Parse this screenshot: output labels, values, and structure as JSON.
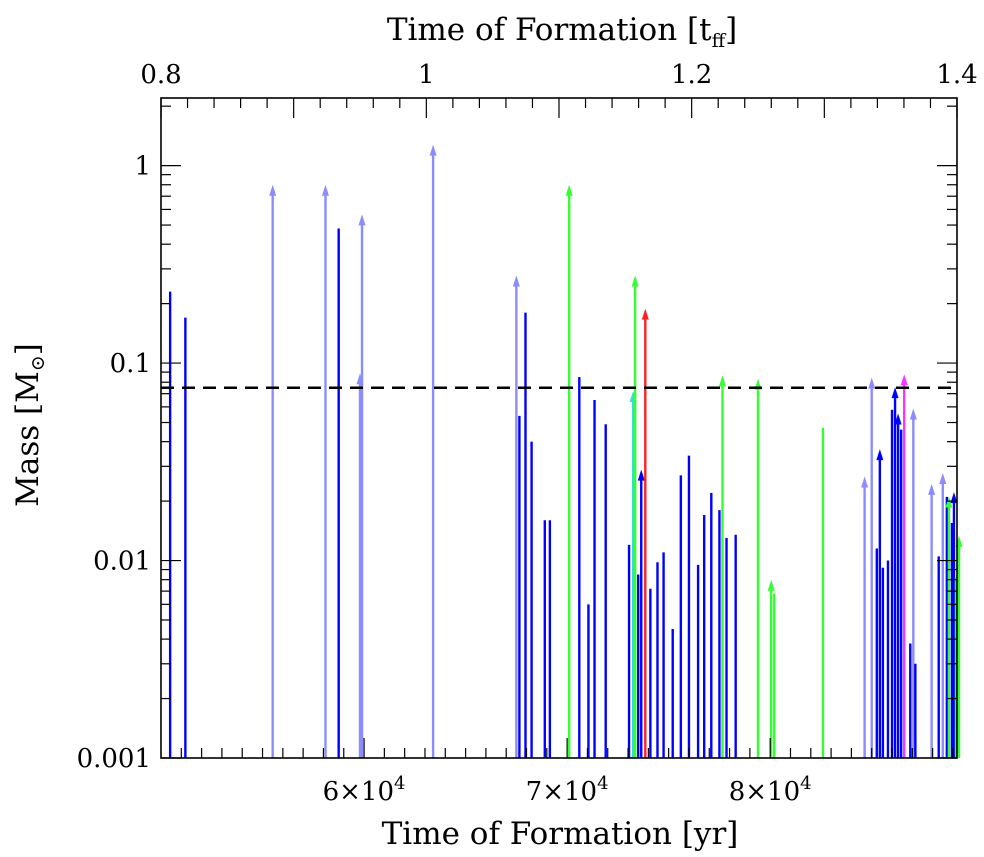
{
  "chart_data": {
    "type": "scatter",
    "xlabel_bottom": "Time of Formation [yr]",
    "xlabel_top": "Time of Formation [t",
    "xlabel_top_sub": "ff",
    "xlabel_top_close": "]",
    "ylabel": "Mass [M",
    "ylabel_sub": "⊙",
    "ylabel_close": "]",
    "xlim_yr": [
      50000,
      89200
    ],
    "xlim_tff": [
      0.8,
      1.4
    ],
    "ylim": [
      0.001,
      2.2
    ],
    "yscale": "log",
    "x_ticks_bottom": [
      {
        "v": 60000,
        "label": "6×10",
        "sup": "4"
      },
      {
        "v": 70000,
        "label": "7×10",
        "sup": "4"
      },
      {
        "v": 80000,
        "label": "8×10",
        "sup": "4"
      }
    ],
    "x_ticks_top": [
      {
        "v": 0.8,
        "label": "0.8"
      },
      {
        "v": 1.0,
        "label": "1"
      },
      {
        "v": 1.2,
        "label": "1.2"
      },
      {
        "v": 1.4,
        "label": "1.4"
      }
    ],
    "y_ticks": [
      {
        "v": 0.001,
        "label": "0.001"
      },
      {
        "v": 0.01,
        "label": "0.01"
      },
      {
        "v": 0.1,
        "label": "0.1"
      },
      {
        "v": 1,
        "label": "1"
      }
    ],
    "reference_line": {
      "mass": 0.075,
      "style": "dashed",
      "color": "#000000"
    },
    "colors": {
      "blue": "#0000ff",
      "light_blue": "#8c8cff",
      "green": "#33ff33",
      "red": "#ff2020",
      "magenta": "#ff33ff",
      "cyan": "#33dddd"
    },
    "points": [
      {
        "t": 50450,
        "m": 0.23,
        "c": "blue",
        "a": false
      },
      {
        "t": 51200,
        "m": 0.17,
        "c": "blue",
        "a": false
      },
      {
        "t": 55500,
        "m": 0.72,
        "c": "light_blue",
        "a": true
      },
      {
        "t": 58100,
        "m": 0.72,
        "c": "light_blue",
        "a": true
      },
      {
        "t": 58750,
        "m": 0.48,
        "c": "blue",
        "a": false
      },
      {
        "t": 59800,
        "m": 0.08,
        "c": "light_blue",
        "a": true
      },
      {
        "t": 59900,
        "m": 0.51,
        "c": "light_blue",
        "a": true
      },
      {
        "t": 63400,
        "m": 1.15,
        "c": "light_blue",
        "a": true
      },
      {
        "t": 67500,
        "m": 0.25,
        "c": "light_blue",
        "a": true
      },
      {
        "t": 67650,
        "m": 0.054,
        "c": "blue",
        "a": false
      },
      {
        "t": 67950,
        "m": 0.18,
        "c": "blue",
        "a": false
      },
      {
        "t": 68250,
        "m": 0.04,
        "c": "blue",
        "a": false
      },
      {
        "t": 68900,
        "m": 0.016,
        "c": "blue",
        "a": false
      },
      {
        "t": 69150,
        "m": 0.016,
        "c": "blue",
        "a": false
      },
      {
        "t": 70100,
        "m": 0.72,
        "c": "green",
        "a": true
      },
      {
        "t": 70600,
        "m": 0.085,
        "c": "blue",
        "a": false
      },
      {
        "t": 71050,
        "m": 0.006,
        "c": "blue",
        "a": false
      },
      {
        "t": 71350,
        "m": 0.065,
        "c": "blue",
        "a": false
      },
      {
        "t": 71900,
        "m": 0.049,
        "c": "blue",
        "a": false
      },
      {
        "t": 73050,
        "m": 0.012,
        "c": "blue",
        "a": false
      },
      {
        "t": 73250,
        "m": 0.065,
        "c": "cyan",
        "a": true
      },
      {
        "t": 73350,
        "m": 0.25,
        "c": "green",
        "a": true
      },
      {
        "t": 73500,
        "m": 0.0085,
        "c": "blue",
        "a": false
      },
      {
        "t": 73650,
        "m": 0.026,
        "c": "blue",
        "a": true
      },
      {
        "t": 73850,
        "m": 0.17,
        "c": "red",
        "a": true
      },
      {
        "t": 74100,
        "m": 0.0072,
        "c": "blue",
        "a": false
      },
      {
        "t": 74450,
        "m": 0.0098,
        "c": "blue",
        "a": false
      },
      {
        "t": 74750,
        "m": 0.011,
        "c": "blue",
        "a": false
      },
      {
        "t": 75200,
        "m": 0.0045,
        "c": "blue",
        "a": false
      },
      {
        "t": 75600,
        "m": 0.027,
        "c": "blue",
        "a": false
      },
      {
        "t": 76000,
        "m": 0.034,
        "c": "blue",
        "a": false
      },
      {
        "t": 76450,
        "m": 0.0095,
        "c": "blue",
        "a": false
      },
      {
        "t": 76750,
        "m": 0.017,
        "c": "blue",
        "a": false
      },
      {
        "t": 77100,
        "m": 0.022,
        "c": "blue",
        "a": false
      },
      {
        "t": 77500,
        "m": 0.018,
        "c": "blue",
        "a": false
      },
      {
        "t": 77650,
        "m": 0.078,
        "c": "green",
        "a": true
      },
      {
        "t": 77850,
        "m": 0.013,
        "c": "blue",
        "a": false
      },
      {
        "t": 78300,
        "m": 0.0135,
        "c": "blue",
        "a": false
      },
      {
        "t": 79400,
        "m": 0.075,
        "c": "green",
        "a": true
      },
      {
        "t": 80050,
        "m": 0.0072,
        "c": "green",
        "a": true
      },
      {
        "t": 80200,
        "m": 0.0068,
        "c": "green",
        "a": false
      },
      {
        "t": 82600,
        "m": 0.047,
        "c": "green",
        "a": false
      },
      {
        "t": 84650,
        "m": 0.024,
        "c": "light_blue",
        "a": true
      },
      {
        "t": 85000,
        "m": 0.076,
        "c": "light_blue",
        "a": true
      },
      {
        "t": 85250,
        "m": 0.0115,
        "c": "blue",
        "a": false
      },
      {
        "t": 85400,
        "m": 0.033,
        "c": "blue",
        "a": true
      },
      {
        "t": 85550,
        "m": 0.0092,
        "c": "blue",
        "a": false
      },
      {
        "t": 85800,
        "m": 0.01,
        "c": "blue",
        "a": false
      },
      {
        "t": 86000,
        "m": 0.058,
        "c": "blue",
        "a": false
      },
      {
        "t": 86150,
        "m": 0.068,
        "c": "blue",
        "a": true
      },
      {
        "t": 86300,
        "m": 0.05,
        "c": "blue",
        "a": true
      },
      {
        "t": 86450,
        "m": 0.046,
        "c": "blue",
        "a": false
      },
      {
        "t": 86600,
        "m": 0.079,
        "c": "magenta",
        "a": true
      },
      {
        "t": 86900,
        "m": 0.0038,
        "c": "blue",
        "a": false
      },
      {
        "t": 87050,
        "m": 0.053,
        "c": "light_blue",
        "a": true
      },
      {
        "t": 87150,
        "m": 0.003,
        "c": "blue",
        "a": false
      },
      {
        "t": 87950,
        "m": 0.022,
        "c": "light_blue",
        "a": true
      },
      {
        "t": 88300,
        "m": 0.0105,
        "c": "blue",
        "a": false
      },
      {
        "t": 88500,
        "m": 0.025,
        "c": "light_blue",
        "a": true
      },
      {
        "t": 88700,
        "m": 0.021,
        "c": "blue",
        "a": false
      },
      {
        "t": 88800,
        "m": 0.019,
        "c": "green",
        "a": true
      },
      {
        "t": 88950,
        "m": 0.0155,
        "c": "blue",
        "a": false
      },
      {
        "t": 89050,
        "m": 0.02,
        "c": "blue",
        "a": true
      },
      {
        "t": 89150,
        "m": 0.0082,
        "c": "green",
        "a": false
      },
      {
        "t": 89300,
        "m": 0.012,
        "c": "green",
        "a": true
      }
    ]
  }
}
